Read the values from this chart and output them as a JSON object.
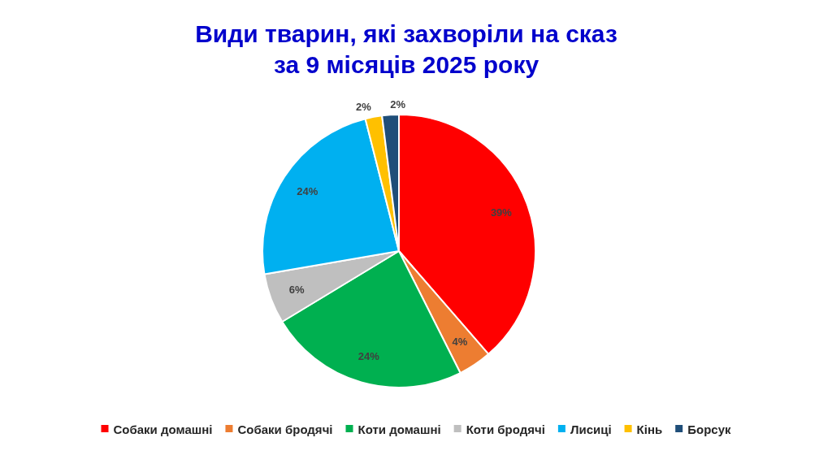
{
  "chart_data": {
    "type": "pie",
    "title": "Види тварин, які захворіли на сказ\nза 9 місяців 2025 року",
    "categories": [
      "Собаки домашні",
      "Собаки бродячі",
      "Коти домашні",
      "Коти бродячі",
      "Лисиці",
      "Кінь",
      "Борсук"
    ],
    "values": [
      39,
      4,
      24,
      6,
      24,
      2,
      2
    ],
    "colors": [
      "#ff0000",
      "#ed7d31",
      "#00b050",
      "#bfbfbf",
      "#00b0f0",
      "#ffc000",
      "#1f4e79"
    ],
    "value_labels": [
      "39%",
      "4%",
      "24%",
      "6%",
      "24%",
      "2%",
      "2%"
    ],
    "legend": "bottom"
  }
}
